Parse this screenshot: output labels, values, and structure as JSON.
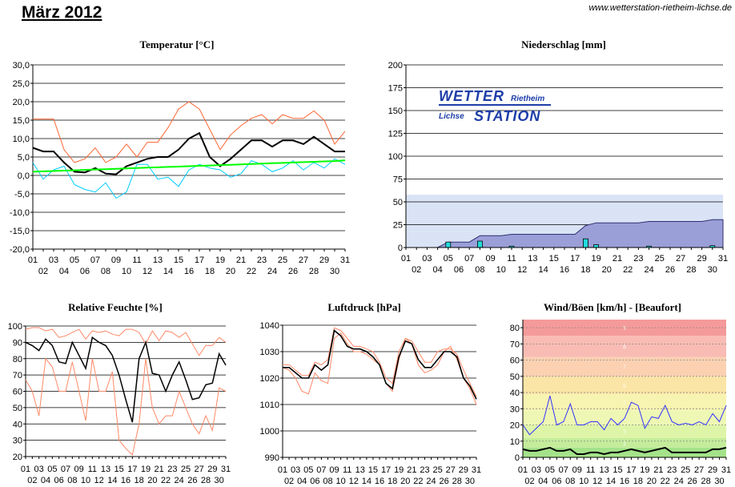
{
  "header": {
    "title": "März 2012",
    "website": "www.wetterstation-rietheim-lichse.de"
  },
  "logo": {
    "line1a": "WETTER",
    "line1b": "Rietheim",
    "line2a": "Lichse",
    "line2b": "STATION"
  },
  "chart_data": [
    {
      "id": "temperature",
      "type": "line",
      "title": "Temperatur [°C]",
      "ylim": [
        -20,
        30
      ],
      "yticks": [
        "-20,0",
        "-15,0",
        "-10,0",
        "-5,0",
        "0,0",
        "5,0",
        "10,0",
        "15,0",
        "20,0",
        "25,0",
        "30,0"
      ],
      "grid": true,
      "x_days": [
        1,
        2,
        3,
        4,
        5,
        6,
        7,
        8,
        9,
        10,
        11,
        12,
        13,
        14,
        15,
        16,
        17,
        18,
        19,
        20,
        21,
        22,
        23,
        24,
        25,
        26,
        27,
        28,
        29,
        30,
        31
      ],
      "series": [
        {
          "color": "#ff6633",
          "values": [
            15.3,
            15.3,
            15.3,
            7,
            3.5,
            4.5,
            7.5,
            3.5,
            5,
            8.5,
            5,
            9,
            9,
            13,
            18,
            20,
            18,
            12.5,
            7,
            11,
            13.5,
            15.5,
            16.5,
            14,
            16.5,
            15.5,
            15.5,
            17.5,
            15,
            8.5,
            12
          ]
        },
        {
          "color": "#000000",
          "values": [
            7.5,
            6.5,
            6.5,
            3.5,
            1,
            0.8,
            2,
            0.5,
            0.3,
            2.5,
            3.5,
            4.5,
            5,
            5,
            7,
            10,
            11.5,
            5,
            2.5,
            4.5,
            7,
            9.5,
            9.5,
            7.8,
            9.5,
            9.5,
            8.5,
            10.5,
            8.5,
            6.5,
            6.5
          ]
        },
        {
          "color": "#00ccff",
          "values": [
            3.5,
            -1,
            1.5,
            2.5,
            -2.5,
            -3.8,
            -4.5,
            -2,
            -6.2,
            -4.5,
            3,
            3,
            -1,
            -0.5,
            -3,
            1.5,
            3,
            2,
            1.5,
            -0.5,
            0.5,
            4,
            3,
            1,
            2,
            4,
            1.5,
            3.5,
            2,
            4.5,
            3
          ]
        },
        {
          "color": "#00ff00",
          "values": [
            1,
            1.1,
            1.2,
            1.3,
            1.4,
            1.5,
            1.6,
            1.7,
            1.8,
            1.9,
            2,
            2.1,
            2.2,
            2.3,
            2.4,
            2.5,
            2.6,
            2.7,
            2.8,
            2.9,
            3,
            3.1,
            3.2,
            3.3,
            3.4,
            3.5,
            3.6,
            3.7,
            3.8,
            3.9,
            4.1
          ]
        }
      ]
    },
    {
      "id": "precipitation",
      "type": "bar",
      "title": "Niederschlag [mm]",
      "ylim": [
        0,
        200
      ],
      "yticks": [
        "0",
        "25",
        "50",
        "75",
        "100",
        "125",
        "150",
        "175",
        "200"
      ],
      "grid": true,
      "x_days": [
        1,
        2,
        3,
        4,
        5,
        6,
        7,
        8,
        9,
        10,
        11,
        12,
        13,
        14,
        15,
        16,
        17,
        18,
        19,
        20,
        21,
        22,
        23,
        24,
        25,
        26,
        27,
        28,
        29,
        30,
        31
      ],
      "daily": [
        0,
        0,
        0,
        0,
        6,
        0,
        0,
        7,
        0,
        0,
        1.5,
        0,
        0,
        0,
        0,
        0,
        0,
        9.5,
        3,
        0,
        0,
        0,
        0,
        1.5,
        0,
        0,
        0,
        0,
        0,
        2,
        0
      ],
      "cumulative": [
        0,
        0,
        0,
        0,
        6,
        6,
        6,
        13,
        13,
        13,
        14.5,
        14.5,
        14.5,
        14.5,
        14.5,
        14.5,
        14.5,
        24,
        27,
        27,
        27,
        27,
        27,
        28.5,
        28.5,
        28.5,
        28.5,
        28.5,
        28.5,
        30.5,
        30.5
      ],
      "band_max": 58
    },
    {
      "id": "humidity",
      "type": "line",
      "title": "Relative Feuchte [%]",
      "ylim": [
        20,
        100
      ],
      "yticks": [
        "20",
        "30",
        "40",
        "50",
        "60",
        "70",
        "80",
        "90",
        "100"
      ],
      "grid": true,
      "x_days": [
        1,
        2,
        3,
        4,
        5,
        6,
        7,
        8,
        9,
        10,
        11,
        12,
        13,
        14,
        15,
        16,
        17,
        18,
        19,
        20,
        21,
        22,
        23,
        24,
        25,
        26,
        27,
        28,
        29,
        30,
        31
      ],
      "series": [
        {
          "color": "#ff8866",
          "values": [
            98,
            99,
            99,
            97,
            98,
            93,
            94,
            96,
            98,
            92,
            97,
            96,
            97,
            95,
            94,
            98,
            98,
            96,
            89,
            97,
            91,
            97,
            96,
            93,
            96,
            89,
            82,
            88,
            88,
            93,
            90
          ]
        },
        {
          "color": "#000000",
          "values": [
            90,
            88,
            85,
            92,
            88,
            78,
            77,
            90,
            82,
            74,
            93,
            90,
            88,
            82,
            70,
            55,
            41,
            80,
            90,
            71,
            70,
            60,
            70,
            78,
            67,
            55,
            56,
            64,
            65,
            83,
            76
          ]
        },
        {
          "color": "#ff8866",
          "values": [
            67,
            60,
            45,
            80,
            75,
            60,
            60,
            78,
            60,
            42,
            80,
            60,
            60,
            72,
            30,
            25,
            21,
            40,
            80,
            50,
            40,
            45,
            45,
            60,
            50,
            40,
            34,
            45,
            36,
            62,
            60
          ]
        }
      ]
    },
    {
      "id": "pressure",
      "type": "line",
      "title": "Luftdruck [hPa]",
      "ylim": [
        990,
        1040
      ],
      "yticks": [
        "990",
        "1000",
        "1010",
        "1020",
        "1030",
        "1040"
      ],
      "grid": true,
      "x_days": [
        1,
        2,
        3,
        4,
        5,
        6,
        7,
        8,
        9,
        10,
        11,
        12,
        13,
        14,
        15,
        16,
        17,
        18,
        19,
        20,
        21,
        22,
        23,
        24,
        25,
        26,
        27,
        28,
        29,
        30,
        31
      ],
      "series": [
        {
          "color": "#ff8866",
          "values": [
            1024,
            1023,
            1020,
            1015,
            1014,
            1022,
            1019,
            1018,
            1035,
            1037,
            1033,
            1030,
            1030,
            1029,
            1027,
            1025,
            1018,
            1015,
            1027,
            1035,
            1033,
            1025,
            1022,
            1023,
            1025,
            1030,
            1032,
            1027,
            1020,
            1016,
            1010
          ]
        },
        {
          "color": "#ff8866",
          "values": [
            1025,
            1025,
            1023,
            1021,
            1021,
            1026,
            1025,
            1027,
            1039,
            1038,
            1035,
            1032,
            1032,
            1031,
            1030,
            1026,
            1020,
            1018,
            1030,
            1035,
            1034,
            1030,
            1026,
            1026,
            1030,
            1031,
            1031,
            1029,
            1023,
            1018,
            1013
          ]
        },
        {
          "color": "#000000",
          "values": [
            1024,
            1024,
            1022,
            1020,
            1020,
            1025,
            1023,
            1025,
            1038,
            1036,
            1032,
            1031,
            1031,
            1030,
            1028,
            1025,
            1018,
            1016,
            1028,
            1034,
            1033,
            1027,
            1024,
            1024,
            1027,
            1030,
            1030,
            1028,
            1020,
            1017,
            1012
          ]
        }
      ]
    },
    {
      "id": "wind",
      "type": "line",
      "title": "Wind/Böen [km/h] - [Beaufort]",
      "ylim": [
        0,
        85
      ],
      "yticks": [
        "0",
        "10",
        "20",
        "30",
        "40",
        "50",
        "60",
        "70",
        "80"
      ],
      "grid": true,
      "beaufort_labels": [
        "2",
        "3",
        "4",
        "5",
        "6",
        "7",
        "8",
        "9"
      ],
      "x_days": [
        1,
        2,
        3,
        4,
        5,
        6,
        7,
        8,
        9,
        10,
        11,
        12,
        13,
        14,
        15,
        16,
        17,
        18,
        19,
        20,
        21,
        22,
        23,
        24,
        25,
        26,
        27,
        28,
        29,
        30,
        31
      ],
      "series": [
        {
          "color": "#3333ff",
          "values": [
            20,
            14,
            18,
            22,
            38,
            20,
            22,
            33,
            20,
            20,
            22,
            22,
            17,
            24,
            20,
            24,
            34,
            32,
            18,
            25,
            24,
            32,
            22,
            20,
            21,
            20,
            22,
            20,
            27,
            22,
            32
          ]
        },
        {
          "color": "#000000",
          "values": [
            5,
            4,
            4,
            5,
            6,
            4,
            4,
            5,
            2,
            2,
            3,
            3,
            2,
            3,
            3,
            4,
            5,
            4,
            3,
            4,
            5,
            6,
            3,
            3,
            3,
            3,
            3,
            3,
            5,
            5,
            6
          ]
        }
      ]
    }
  ],
  "x_tick_labels": {
    "odd": [
      "01",
      "03",
      "05",
      "07",
      "09",
      "11",
      "13",
      "15",
      "17",
      "19",
      "21",
      "23",
      "25",
      "27",
      "29",
      "31"
    ],
    "even": [
      "02",
      "04",
      "06",
      "08",
      "10",
      "12",
      "14",
      "16",
      "18",
      "20",
      "22",
      "24",
      "26",
      "28",
      "30"
    ]
  }
}
